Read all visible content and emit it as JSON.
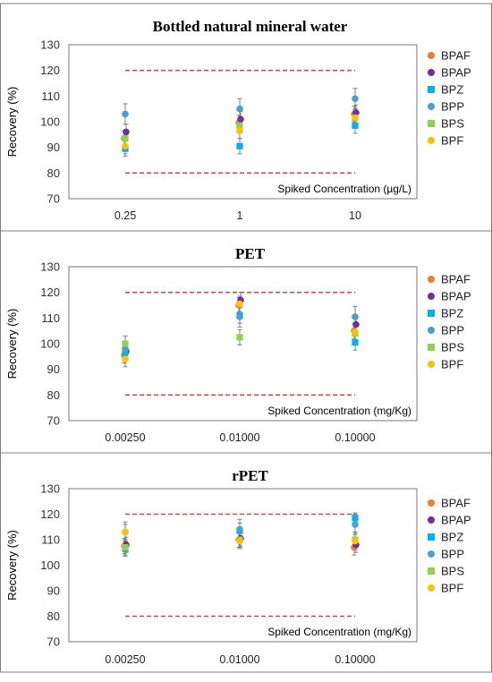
{
  "chart_data": [
    {
      "type": "scatter",
      "title": "Bottled natural mineral water",
      "ylabel": "Recovery (%)",
      "annotation": "Spiked Concentration (µg/L)",
      "categories": [
        "0.25",
        "1",
        "10"
      ],
      "ylim": [
        70,
        130
      ],
      "yticks": [
        70,
        80,
        90,
        100,
        110,
        120,
        130
      ],
      "limits": [
        80,
        120
      ],
      "series": [
        {
          "name": "BPAF",
          "values": [
            93.5,
            99.5,
            103
          ],
          "errors": [
            3,
            3,
            3
          ]
        },
        {
          "name": "BPAP",
          "values": [
            96,
            101,
            103.5
          ],
          "errors": [
            3,
            3,
            3
          ]
        },
        {
          "name": "BPZ",
          "values": [
            89.5,
            90.5,
            98.5
          ],
          "errors": [
            3,
            3,
            3
          ]
        },
        {
          "name": "BPP",
          "values": [
            103,
            105,
            109
          ],
          "errors": [
            4,
            4,
            4
          ]
        },
        {
          "name": "BPS",
          "values": [
            93.5,
            98.5,
            101.5
          ],
          "errors": [
            3,
            3,
            3
          ]
        },
        {
          "name": "BPF",
          "values": [
            90.5,
            96.5,
            101.5
          ],
          "errors": [
            3,
            3,
            3
          ]
        }
      ]
    },
    {
      "type": "scatter",
      "title": "PET",
      "ylabel": "Recovery (%)",
      "annotation": "Spiked Concentration (mg/Kg)",
      "categories": [
        "0.00250",
        "0.01000",
        "0.10000"
      ],
      "ylim": [
        70,
        130
      ],
      "yticks": [
        70,
        80,
        90,
        100,
        110,
        120,
        130
      ],
      "limits": [
        80,
        120
      ],
      "series": [
        {
          "name": "BPAF",
          "values": [
            95.5,
            115,
            105
          ],
          "errors": [
            3,
            3,
            3
          ]
        },
        {
          "name": "BPAP",
          "values": [
            97,
            117,
            107.5
          ],
          "errors": [
            3,
            3,
            3
          ]
        },
        {
          "name": "BPZ",
          "values": [
            96.5,
            111,
            100.5
          ],
          "errors": [
            3,
            3,
            3
          ]
        },
        {
          "name": "BPP",
          "values": [
            98,
            110.5,
            110.5
          ],
          "errors": [
            3,
            4,
            4
          ]
        },
        {
          "name": "BPS",
          "values": [
            100,
            102.5,
            104
          ],
          "errors": [
            3,
            3,
            3
          ]
        },
        {
          "name": "BPF",
          "values": [
            94,
            115.5,
            104.5
          ],
          "errors": [
            3,
            3,
            3
          ]
        }
      ]
    },
    {
      "type": "scatter",
      "title": "rPET",
      "ylabel": "Recovery (%)",
      "annotation": "Spiked Concentration (mg/Kg)",
      "categories": [
        "0.00250",
        "0.01000",
        "0.10000"
      ],
      "ylim": [
        70,
        130
      ],
      "yticks": [
        70,
        80,
        90,
        100,
        110,
        120,
        130
      ],
      "limits": [
        80,
        120
      ],
      "series": [
        {
          "name": "BPAF",
          "values": [
            107.5,
            110,
            107
          ],
          "errors": [
            3,
            3,
            3
          ]
        },
        {
          "name": "BPAP",
          "values": [
            108,
            110.5,
            108
          ],
          "errors": [
            3,
            3,
            3
          ]
        },
        {
          "name": "BPZ",
          "values": [
            106.5,
            113.5,
            118.5
          ],
          "errors": [
            3,
            3,
            2
          ]
        },
        {
          "name": "BPP",
          "values": [
            113,
            114,
            116
          ],
          "errors": [
            4,
            4,
            4
          ]
        },
        {
          "name": "BPS",
          "values": [
            107,
            110,
            110
          ],
          "errors": [
            3,
            3,
            3
          ]
        },
        {
          "name": "BPF",
          "values": [
            113,
            109.5,
            109.5
          ],
          "errors": [
            3,
            3,
            3
          ]
        }
      ]
    }
  ],
  "legend": [
    {
      "name": "BPAF",
      "color": "#ED7D31",
      "marker": "circle"
    },
    {
      "name": "BPAP",
      "color": "#7030A0",
      "marker": "circle"
    },
    {
      "name": "BPZ",
      "color": "#00B0F0",
      "marker": "square"
    },
    {
      "name": "BPP",
      "color": "#4A9FD8",
      "marker": "circle"
    },
    {
      "name": "BPS",
      "color": "#92D050",
      "marker": "square"
    },
    {
      "name": "BPF",
      "color": "#FFC000",
      "marker": "circle"
    }
  ],
  "colors": {
    "limit_line": "#C0504D",
    "error_bar": "#808080",
    "panel_border": "#7f7f7f"
  }
}
